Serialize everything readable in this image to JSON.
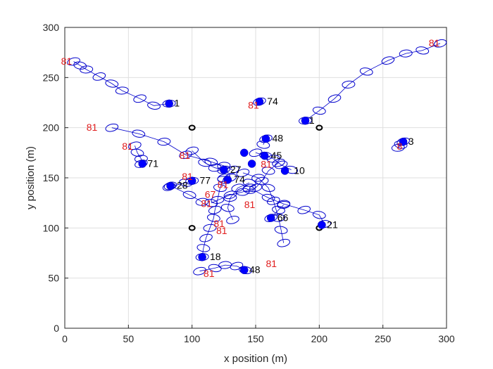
{
  "chart_data": {
    "type": "scatter",
    "xlabel": "x position (m)",
    "ylabel": "y position (m)",
    "xlim": [
      0,
      300
    ],
    "ylim": [
      0,
      300
    ],
    "xticks": [
      "0",
      "50",
      "100",
      "150",
      "200",
      "250",
      "300"
    ],
    "yticks": [
      "0",
      "50",
      "100",
      "150",
      "200",
      "250",
      "300"
    ],
    "grid": true,
    "colors": {
      "track": "#0000cc",
      "marker": "#0000ff",
      "anchor": "#000000",
      "label_black": "#000000",
      "label_red": "#e01b1b"
    },
    "anchors": [
      {
        "x": 100,
        "y": 200
      },
      {
        "x": 200,
        "y": 200
      },
      {
        "x": 100,
        "y": 100
      },
      {
        "x": 200,
        "y": 100
      }
    ],
    "tracks": [
      {
        "name": "1",
        "points": [
          [
            7,
            266
          ],
          [
            12,
            262
          ],
          [
            17,
            258
          ],
          [
            27,
            251
          ],
          [
            37,
            244
          ],
          [
            45,
            237
          ],
          [
            59,
            229
          ],
          [
            70,
            222
          ],
          [
            82,
            224
          ]
        ]
      },
      {
        "name": "1b",
        "points": [
          [
            295,
            284
          ],
          [
            281,
            277
          ],
          [
            268,
            274
          ],
          [
            254,
            267
          ],
          [
            237,
            256
          ],
          [
            223,
            243
          ],
          [
            212,
            229
          ],
          [
            200,
            217
          ],
          [
            189,
            207
          ]
        ]
      },
      {
        "name": "74",
        "points": [
          [
            153,
            226
          ]
        ]
      },
      {
        "name": "3",
        "points": [
          [
            266,
            186
          ],
          [
            264,
            183
          ],
          [
            262,
            180
          ]
        ]
      },
      {
        "name": "71",
        "points": [
          [
            55,
            182
          ],
          [
            57,
            175
          ],
          [
            60,
            169
          ],
          [
            60,
            164
          ]
        ]
      },
      {
        "name": "48",
        "points": [
          [
            158,
            189
          ],
          [
            156,
            183
          ]
        ]
      },
      {
        "name": "10",
        "points": [
          [
            37,
            200
          ],
          [
            58,
            194
          ],
          [
            78,
            186
          ],
          [
            95,
            173
          ],
          [
            115,
            166
          ],
          [
            125,
            162
          ],
          [
            132,
            158
          ]
        ]
      },
      {
        "name": "45",
        "points": [
          [
            150,
            175
          ],
          [
            158,
            172
          ],
          [
            164,
            169
          ],
          [
            170,
            163
          ],
          [
            178,
            158
          ]
        ]
      },
      {
        "name": "21",
        "points": [
          [
            168,
            165
          ],
          [
            160,
            157
          ],
          [
            155,
            147
          ],
          [
            150,
            140
          ],
          [
            145,
            138
          ],
          [
            140,
            136
          ],
          [
            130,
            133
          ],
          [
            115,
            125
          ]
        ]
      },
      {
        "name": "21b",
        "points": [
          [
            145,
            140
          ],
          [
            160,
            130
          ],
          [
            172,
            124
          ],
          [
            188,
            118
          ],
          [
            200,
            113
          ],
          [
            204,
            104
          ]
        ]
      },
      {
        "name": "66",
        "points": [
          [
            162,
            110
          ],
          [
            168,
            118
          ],
          [
            172,
            123
          ]
        ]
      },
      {
        "name": "81tr",
        "points": [
          [
            172,
            85
          ],
          [
            170,
            98
          ],
          [
            168,
            110
          ],
          [
            164,
            127
          ],
          [
            160,
            140
          ],
          [
            152,
            150
          ],
          [
            140,
            155
          ]
        ]
      },
      {
        "name": "27",
        "points": [
          [
            100,
            177
          ],
          [
            110,
            165
          ],
          [
            118,
            160
          ],
          [
            125,
            158
          ]
        ]
      },
      {
        "name": "77",
        "points": [
          [
            82,
            141
          ],
          [
            95,
            145
          ],
          [
            100,
            147
          ]
        ]
      },
      {
        "name": "74b",
        "points": [
          [
            130,
            150
          ],
          [
            125,
            148
          ]
        ]
      },
      {
        "name": "28",
        "points": [
          [
            83,
            142
          ],
          [
            98,
            133
          ],
          [
            108,
            126
          ]
        ]
      },
      {
        "name": "18",
        "points": [
          [
            125,
            150
          ],
          [
            122,
            140
          ],
          [
            120,
            128
          ],
          [
            118,
            118
          ],
          [
            117,
            110
          ],
          [
            114,
            100
          ],
          [
            111,
            90
          ],
          [
            109,
            80
          ],
          [
            108,
            71
          ]
        ]
      },
      {
        "name": "48b",
        "points": [
          [
            106,
            57
          ],
          [
            118,
            60
          ],
          [
            126,
            63
          ],
          [
            135,
            62
          ],
          [
            142,
            58
          ]
        ]
      },
      {
        "name": "81mid",
        "points": [
          [
            132,
            108
          ],
          [
            128,
            120
          ],
          [
            130,
            130
          ],
          [
            136,
            140
          ],
          [
            145,
            145
          ]
        ]
      }
    ],
    "markers": [
      {
        "x": 82,
        "y": 224
      },
      {
        "x": 189,
        "y": 207
      },
      {
        "x": 153,
        "y": 226
      },
      {
        "x": 266,
        "y": 186
      },
      {
        "x": 61,
        "y": 164
      },
      {
        "x": 158,
        "y": 189
      },
      {
        "x": 141,
        "y": 175
      },
      {
        "x": 157,
        "y": 172
      },
      {
        "x": 147,
        "y": 164
      },
      {
        "x": 173,
        "y": 157
      },
      {
        "x": 125,
        "y": 158
      },
      {
        "x": 100,
        "y": 147
      },
      {
        "x": 128,
        "y": 148
      },
      {
        "x": 83,
        "y": 142
      },
      {
        "x": 162,
        "y": 110
      },
      {
        "x": 202,
        "y": 103
      },
      {
        "x": 108,
        "y": 71
      },
      {
        "x": 141,
        "y": 58
      }
    ],
    "black_labels": [
      {
        "text": "1",
        "x": 86,
        "y": 221
      },
      {
        "text": "1",
        "x": 192,
        "y": 204
      },
      {
        "text": "74",
        "x": 159,
        "y": 223
      },
      {
        "text": "3",
        "x": 270,
        "y": 183
      },
      {
        "text": "71",
        "x": 65,
        "y": 161
      },
      {
        "text": "48",
        "x": 163,
        "y": 186
      },
      {
        "text": "45",
        "x": 162,
        "y": 169
      },
      {
        "text": "10",
        "x": 180,
        "y": 154
      },
      {
        "text": "27",
        "x": 130,
        "y": 155
      },
      {
        "text": "77",
        "x": 106,
        "y": 144
      },
      {
        "text": "74",
        "x": 133,
        "y": 145
      },
      {
        "text": "28",
        "x": 88,
        "y": 139
      },
      {
        "text": "66",
        "x": 167,
        "y": 107
      },
      {
        "text": "21",
        "x": 206,
        "y": 100
      },
      {
        "text": "18",
        "x": 114,
        "y": 68
      },
      {
        "text": "48",
        "x": 145,
        "y": 55
      }
    ],
    "red_labels": [
      {
        "text": "81",
        "x": -3,
        "y": 263
      },
      {
        "text": "81",
        "x": 286,
        "y": 281
      },
      {
        "text": "81",
        "x": 144,
        "y": 219
      },
      {
        "text": "81",
        "x": 17,
        "y": 197
      },
      {
        "text": "8",
        "x": 261,
        "y": 178
      },
      {
        "text": "81",
        "x": 45,
        "y": 178
      },
      {
        "text": "81",
        "x": 90,
        "y": 169
      },
      {
        "text": "81",
        "x": 154,
        "y": 160
      },
      {
        "text": "81",
        "x": 92,
        "y": 148
      },
      {
        "text": "81",
        "x": 120,
        "y": 140
      },
      {
        "text": "67",
        "x": 110,
        "y": 130
      },
      {
        "text": "81",
        "x": 107,
        "y": 121
      },
      {
        "text": "81",
        "x": 141,
        "y": 120
      },
      {
        "text": "81",
        "x": 117,
        "y": 101
      },
      {
        "text": "81",
        "x": 119,
        "y": 94
      },
      {
        "text": "81",
        "x": 158,
        "y": 61
      },
      {
        "text": "81",
        "x": 109,
        "y": 51
      }
    ]
  }
}
